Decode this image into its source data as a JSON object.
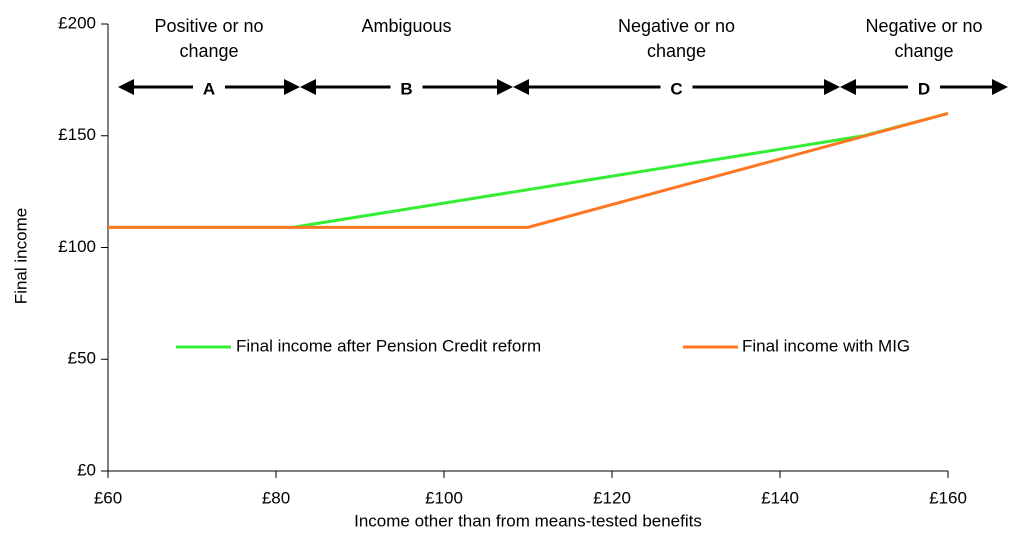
{
  "chart_data": {
    "type": "line",
    "y_label": "Final income",
    "x_label": "Income other than from means-tested benefits",
    "series": [
      {
        "name": "Final income after Pension Credit reform",
        "color": "#33ee33",
        "x": [
          60,
          82,
          150,
          160
        ],
        "values": [
          109,
          109,
          150,
          160
        ]
      },
      {
        "name": "Final income with MIG",
        "color": "#ff7722",
        "x": [
          60,
          110,
          160
        ],
        "values": [
          109,
          109,
          160
        ]
      }
    ],
    "xlim": [
      60,
      160
    ],
    "xticks": [
      {
        "value": 60,
        "label": "£60"
      },
      {
        "value": 80,
        "label": "£80"
      },
      {
        "value": 100,
        "label": "£100"
      },
      {
        "value": 120,
        "label": "£120"
      },
      {
        "value": 140,
        "label": "£140"
      },
      {
        "value": 160,
        "label": "£160"
      }
    ],
    "ylim": [
      0,
      200
    ],
    "yticks": [
      {
        "value": 0,
        "label": "£0"
      },
      {
        "value": 50,
        "label": "£50"
      },
      {
        "value": 100,
        "label": "£100"
      },
      {
        "value": 150,
        "label": "£150"
      },
      {
        "value": 200,
        "label": "£200"
      }
    ],
    "regions": [
      {
        "label": "A",
        "description": "Positive or no change"
      },
      {
        "label": "B",
        "description": "Ambiguous"
      },
      {
        "label": "C",
        "description": "Negative or no change"
      },
      {
        "label": "D",
        "description": "Negative or no change"
      }
    ]
  }
}
